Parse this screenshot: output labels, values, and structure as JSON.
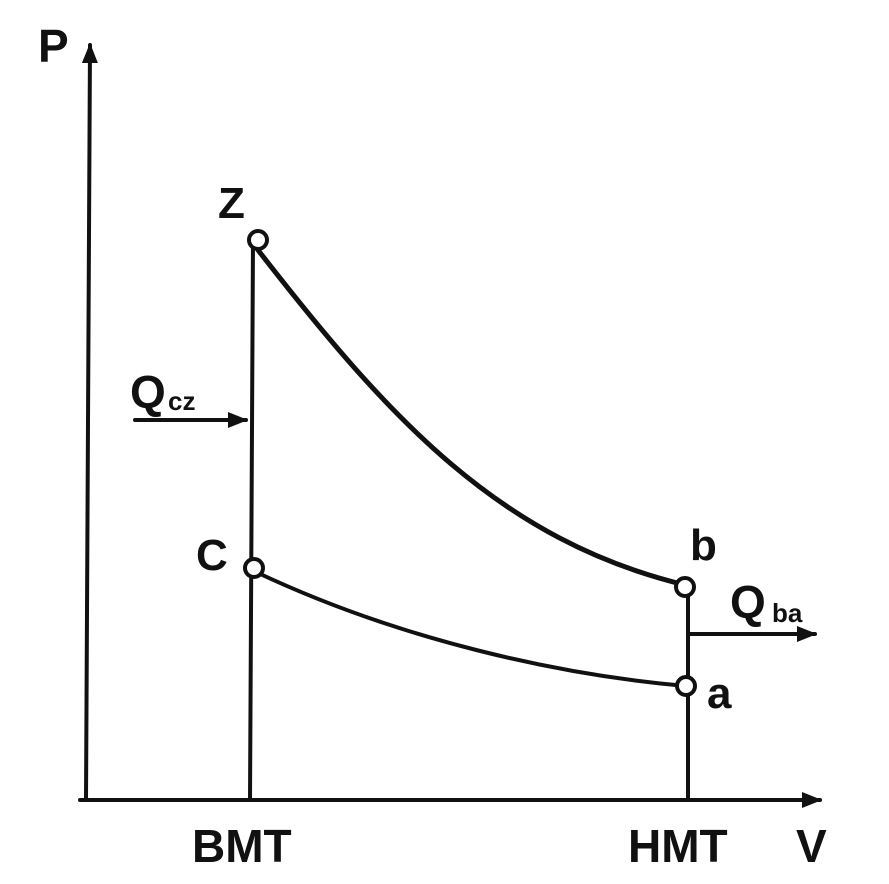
{
  "axes": {
    "y_label": "P",
    "x_label": "V"
  },
  "positions": {
    "left": "BMT",
    "right": "HMT"
  },
  "points": {
    "z": "Z",
    "c": "C",
    "b": "b",
    "a": "a"
  },
  "heat": {
    "cz_main": "Q",
    "cz_sub": "cz",
    "ba_main": "Q",
    "ba_sub": "ba"
  }
}
